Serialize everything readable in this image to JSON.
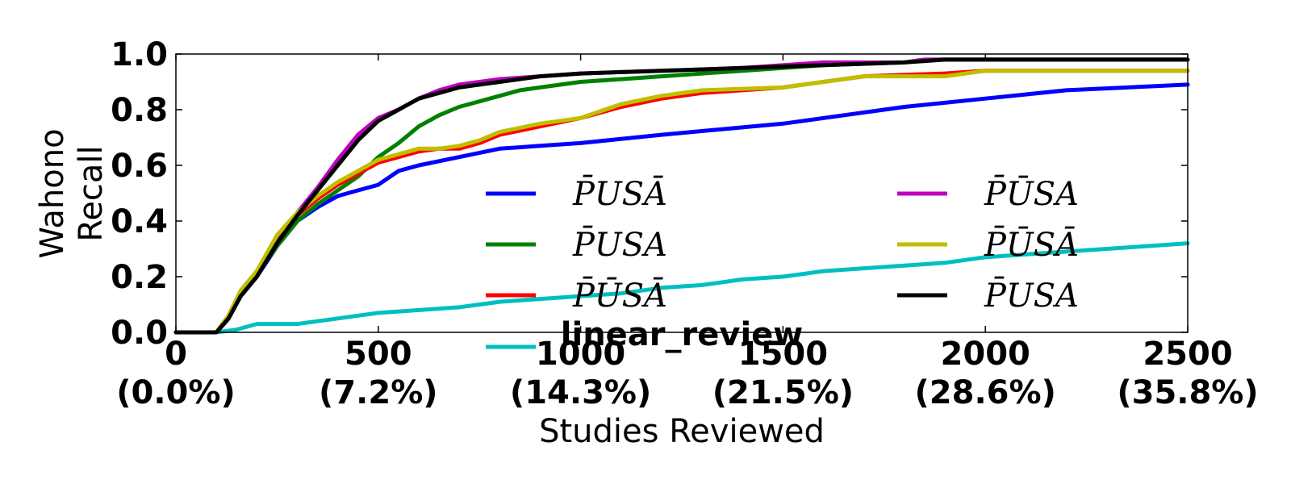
{
  "chart_data": {
    "type": "line",
    "xlabel": "Studies Reviewed",
    "ylabel": [
      "Wahono",
      "Recall"
    ],
    "xlim": [
      0,
      2500
    ],
    "ylim": [
      0,
      1.0
    ],
    "grid": false,
    "legend_placement": "lower-right, two columns",
    "x_ticks": [
      {
        "value": 0,
        "label": "0",
        "sublabel": "(0.0%)"
      },
      {
        "value": 500,
        "label": "500",
        "sublabel": "(7.2%)"
      },
      {
        "value": 1000,
        "label": "1000",
        "sublabel": "(14.3%)"
      },
      {
        "value": 1500,
        "label": "1500",
        "sublabel": "(21.5%)"
      },
      {
        "value": 2000,
        "label": "2000",
        "sublabel": "(28.6%)"
      },
      {
        "value": 2500,
        "label": "2500",
        "sublabel": "(35.8%)"
      }
    ],
    "y_ticks": [
      {
        "value": 0.0,
        "label": "0.0"
      },
      {
        "value": 0.2,
        "label": "0.2"
      },
      {
        "value": 0.4,
        "label": "0.4"
      },
      {
        "value": 0.6,
        "label": "0.6"
      },
      {
        "value": 0.8,
        "label": "0.8"
      },
      {
        "value": 1.0,
        "label": "1.0"
      }
    ],
    "series": [
      {
        "name": "P̄USĀ",
        "color": "#0000ff",
        "x": [
          0,
          100,
          130,
          160,
          200,
          250,
          300,
          350,
          400,
          450,
          500,
          550,
          600,
          700,
          800,
          900,
          1000,
          1200,
          1500,
          1800,
          2000,
          2200,
          2500
        ],
        "y": [
          0.0,
          0.0,
          0.05,
          0.13,
          0.2,
          0.31,
          0.4,
          0.45,
          0.49,
          0.51,
          0.53,
          0.58,
          0.6,
          0.63,
          0.66,
          0.67,
          0.68,
          0.71,
          0.75,
          0.81,
          0.84,
          0.87,
          0.89
        ]
      },
      {
        "name": "P̄USA",
        "color": "#008000",
        "x": [
          0,
          100,
          130,
          160,
          200,
          250,
          300,
          350,
          400,
          450,
          500,
          550,
          600,
          650,
          700,
          750,
          800,
          850,
          900,
          1000,
          1100,
          1200,
          1400,
          1600,
          1800,
          1850,
          2500
        ],
        "y": [
          0.0,
          0.0,
          0.05,
          0.14,
          0.21,
          0.31,
          0.4,
          0.46,
          0.51,
          0.56,
          0.63,
          0.68,
          0.74,
          0.78,
          0.81,
          0.83,
          0.85,
          0.87,
          0.88,
          0.9,
          0.91,
          0.92,
          0.94,
          0.96,
          0.97,
          0.98,
          0.98
        ]
      },
      {
        "name": "P̄ŪSĀ",
        "color": "#ff0000",
        "x": [
          0,
          100,
          130,
          160,
          200,
          250,
          300,
          350,
          400,
          450,
          500,
          550,
          600,
          650,
          700,
          750,
          800,
          900,
          1000,
          1100,
          1200,
          1300,
          1500,
          1600,
          1700,
          1900,
          2000,
          2500
        ],
        "y": [
          0.0,
          0.0,
          0.06,
          0.15,
          0.22,
          0.34,
          0.42,
          0.48,
          0.53,
          0.57,
          0.61,
          0.63,
          0.65,
          0.66,
          0.66,
          0.68,
          0.71,
          0.74,
          0.77,
          0.81,
          0.84,
          0.86,
          0.88,
          0.9,
          0.92,
          0.93,
          0.94,
          0.94
        ]
      },
      {
        "name": "linear_review",
        "color": "#00bfbf",
        "x": [
          0,
          100,
          150,
          200,
          300,
          350,
          400,
          450,
          500,
          600,
          700,
          800,
          900,
          1000,
          1100,
          1200,
          1300,
          1400,
          1500,
          1600,
          1700,
          1800,
          1900,
          2000,
          2100,
          2200,
          2300,
          2400,
          2500
        ],
        "y": [
          0.0,
          0.0,
          0.01,
          0.03,
          0.03,
          0.04,
          0.05,
          0.06,
          0.07,
          0.08,
          0.09,
          0.11,
          0.12,
          0.13,
          0.14,
          0.16,
          0.17,
          0.19,
          0.2,
          0.22,
          0.23,
          0.24,
          0.25,
          0.27,
          0.28,
          0.29,
          0.3,
          0.31,
          0.32
        ]
      },
      {
        "name": "P̄ŪSA",
        "color": "#bf00bf",
        "x": [
          0,
          100,
          130,
          160,
          200,
          250,
          300,
          350,
          400,
          450,
          500,
          550,
          600,
          650,
          700,
          750,
          800,
          900,
          1000,
          1200,
          1400,
          1600,
          1800,
          1850,
          2500
        ],
        "y": [
          0.0,
          0.0,
          0.05,
          0.14,
          0.21,
          0.33,
          0.43,
          0.52,
          0.62,
          0.71,
          0.77,
          0.8,
          0.84,
          0.87,
          0.89,
          0.9,
          0.91,
          0.92,
          0.93,
          0.94,
          0.95,
          0.97,
          0.97,
          0.98,
          0.98
        ]
      },
      {
        "name": "P̄ŪSĀ",
        "color": "#bfbf00",
        "x": [
          0,
          100,
          130,
          160,
          200,
          250,
          300,
          350,
          400,
          450,
          500,
          550,
          600,
          650,
          700,
          750,
          800,
          900,
          1000,
          1100,
          1200,
          1300,
          1500,
          1600,
          1700,
          1900,
          2000,
          2500
        ],
        "y": [
          0.0,
          0.0,
          0.06,
          0.15,
          0.22,
          0.35,
          0.43,
          0.49,
          0.54,
          0.58,
          0.62,
          0.64,
          0.66,
          0.66,
          0.67,
          0.69,
          0.72,
          0.75,
          0.77,
          0.82,
          0.85,
          0.87,
          0.88,
          0.9,
          0.92,
          0.92,
          0.94,
          0.94
        ]
      },
      {
        "name": "P̄USA",
        "color": "#000000",
        "x": [
          0,
          100,
          130,
          160,
          200,
          250,
          300,
          350,
          400,
          450,
          500,
          550,
          600,
          650,
          700,
          750,
          800,
          900,
          1000,
          1200,
          1400,
          1600,
          1800,
          1900,
          2500
        ],
        "y": [
          0.0,
          0.0,
          0.05,
          0.13,
          0.2,
          0.32,
          0.42,
          0.51,
          0.6,
          0.69,
          0.76,
          0.8,
          0.84,
          0.86,
          0.88,
          0.89,
          0.9,
          0.92,
          0.93,
          0.94,
          0.95,
          0.96,
          0.97,
          0.98,
          0.98
        ]
      }
    ],
    "legend_label_overlay": "linear_review"
  }
}
